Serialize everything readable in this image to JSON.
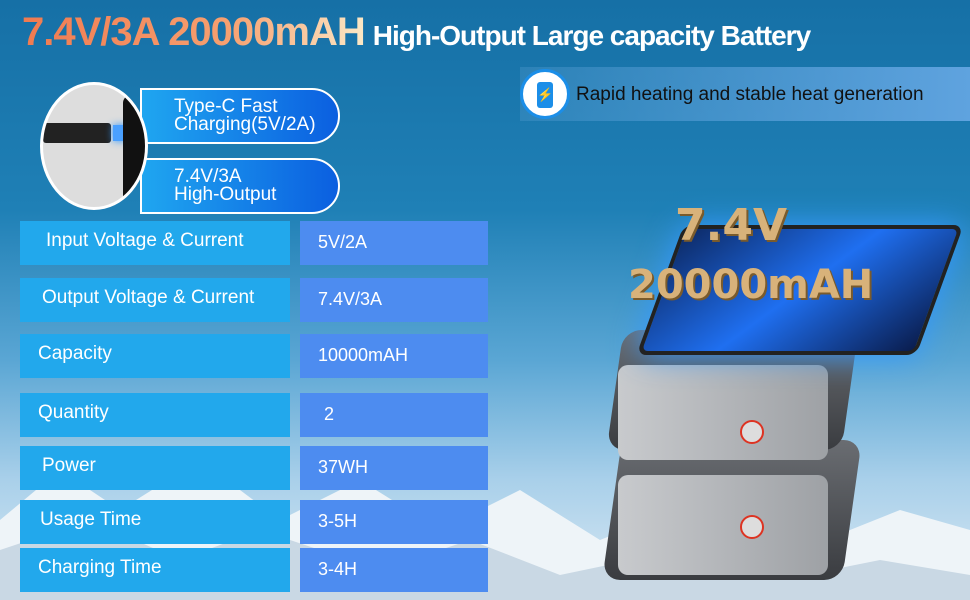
{
  "header": {
    "highlight": "7.4V/3A 20000mAH",
    "subtitle": "High-Output Large capacity Battery"
  },
  "badges": [
    {
      "line1": "Type-C Fast",
      "line2": "Charging(5V/2A)"
    },
    {
      "line1": "7.4V/3A",
      "line2": "High-Output"
    }
  ],
  "feature": {
    "icon": "power-bank-icon",
    "text": "Rapid heating and stable heat generation"
  },
  "specs": [
    {
      "label": "Input Voltage & Current",
      "value": "5V/2A"
    },
    {
      "label": "Output Voltage & Current",
      "value": "7.4V/3A"
    },
    {
      "label": "Capacity",
      "value": "10000mAH"
    },
    {
      "label": "Quantity",
      "value": "2"
    },
    {
      "label": "Power",
      "value": "37WH"
    },
    {
      "label": "Usage Time",
      "value": "3-5H"
    },
    {
      "label": "Charging Time",
      "value": "3-4H"
    }
  ],
  "product": {
    "voltage": "7.4V",
    "capacity": "20000mAH"
  },
  "colors": {
    "label_bg": "#22a8ec",
    "value_bg": "#4d8cf0",
    "title_accent": "#f08a5a"
  }
}
